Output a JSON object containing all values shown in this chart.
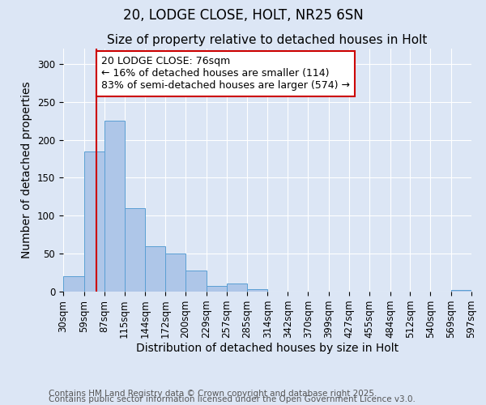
{
  "title1": "20, LODGE CLOSE, HOLT, NR25 6SN",
  "title2": "Size of property relative to detached houses in Holt",
  "xlabel": "Distribution of detached houses by size in Holt",
  "ylabel": "Number of detached properties",
  "bin_edges": [
    30,
    59,
    87,
    115,
    144,
    172,
    200,
    229,
    257,
    285,
    314,
    342,
    370,
    399,
    427,
    455,
    484,
    512,
    540,
    569,
    597
  ],
  "bar_heights": [
    20,
    185,
    225,
    110,
    60,
    50,
    28,
    8,
    11,
    3,
    0,
    0,
    0,
    0,
    0,
    0,
    0,
    0,
    0,
    2
  ],
  "bar_color": "#aec6e8",
  "bar_edgecolor": "#5a9fd4",
  "property_size": 76,
  "red_line_color": "#cc0000",
  "annotation_text": "20 LODGE CLOSE: 76sqm\n← 16% of detached houses are smaller (114)\n83% of semi-detached houses are larger (574) →",
  "annotation_box_color": "#ffffff",
  "annotation_box_edgecolor": "#cc0000",
  "ylim": [
    0,
    320
  ],
  "yticks": [
    0,
    50,
    100,
    150,
    200,
    250,
    300
  ],
  "footer1": "Contains HM Land Registry data © Crown copyright and database right 2025.",
  "footer2": "Contains public sector information licensed under the Open Government Licence v3.0.",
  "background_color": "#dce6f5",
  "plot_background": "#dce6f5",
  "grid_color": "#ffffff",
  "title_fontsize": 12,
  "subtitle_fontsize": 11,
  "axis_label_fontsize": 10,
  "tick_fontsize": 8.5,
  "annotation_fontsize": 9,
  "footer_fontsize": 7.5
}
